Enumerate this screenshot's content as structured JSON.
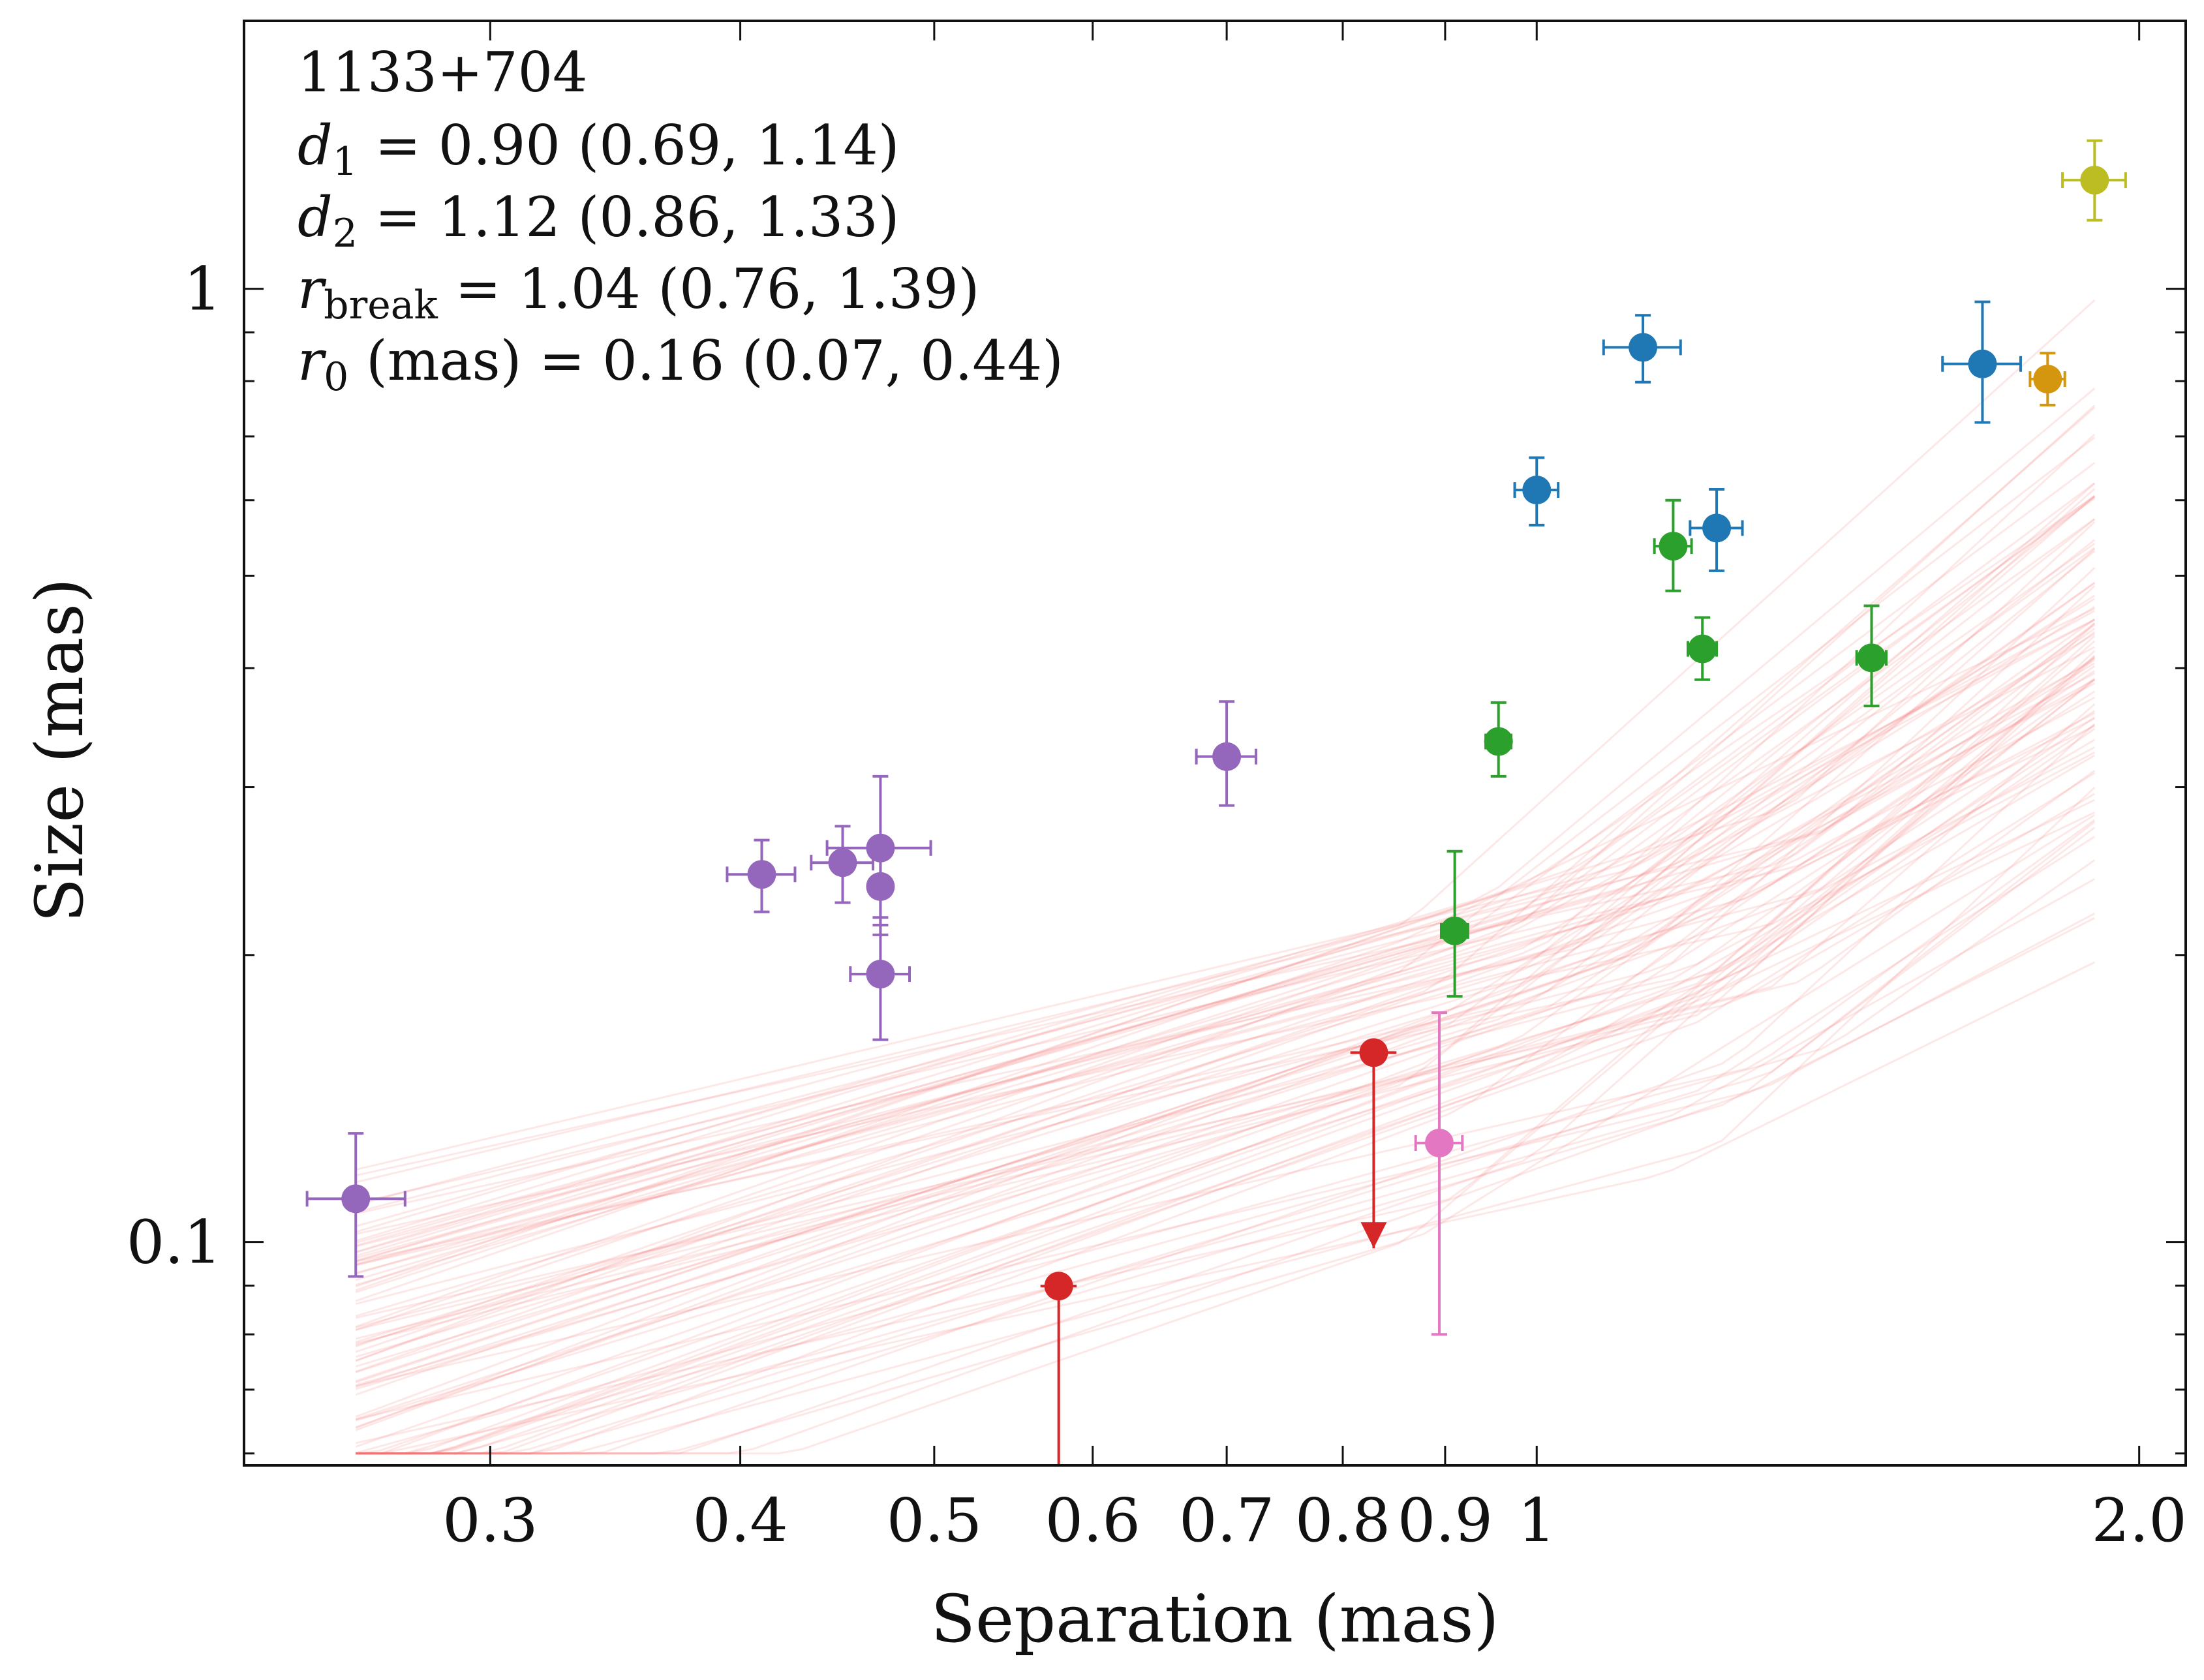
{
  "chart_data": {
    "type": "scatter",
    "xlabel": "Separation (mas)",
    "ylabel": "Size (mas)",
    "xscale": "log",
    "yscale": "log",
    "xlim": [
      0.226,
      2.11
    ],
    "ylim": [
      0.0583,
      1.91
    ],
    "x_tick_labels": [
      {
        "value": 0.3,
        "label": "0.3"
      },
      {
        "value": 0.4,
        "label": "0.4"
      },
      {
        "value": 0.5,
        "label": "0.5"
      },
      {
        "value": 0.6,
        "label": "0.6"
      },
      {
        "value": 0.7,
        "label": "0.7"
      },
      {
        "value": 0.8,
        "label": "0.8"
      },
      {
        "value": 0.9,
        "label": "0.9"
      },
      {
        "value": 1.0,
        "label": "1"
      },
      {
        "value": 2.0,
        "label": "2.0"
      }
    ],
    "y_tick_labels": [
      {
        "value": 1.0,
        "label": "1"
      },
      {
        "value": 0.1,
        "label": "0.1"
      }
    ],
    "annotation": {
      "source": "1133+704",
      "d1": {
        "symbol": "d",
        "sub": "1",
        "rest": " = 0.90 (0.69, 1.14)"
      },
      "d2": {
        "symbol": "d",
        "sub": "2",
        "rest": " = 1.12 (0.86, 1.33)"
      },
      "r_break": {
        "symbol": "r",
        "sub": "break",
        "rest": " = 1.04 (0.76, 1.39)"
      },
      "r0": {
        "symbol": "r",
        "sub": "0",
        "rest": " (mas) = 0.16 (0.07, 0.44)"
      }
    },
    "fit_curves": {
      "description": "posterior broken power-law samples",
      "color": "#f26d6d",
      "x_range": [
        0.257,
        1.9
      ]
    },
    "series": [
      {
        "name": "purple",
        "color": "#9467bd",
        "points": [
          {
            "x": 0.257,
            "y": 0.111,
            "xerr": [
              0.014,
              0.015
            ],
            "yerr": [
              0.019,
              0.019
            ]
          },
          {
            "x": 0.41,
            "y": 0.243,
            "xerr": [
              0.016,
              0.016
            ],
            "yerr": [
              0.021,
              0.021
            ]
          },
          {
            "x": 0.45,
            "y": 0.25,
            "xerr": [
              0.016,
              0.016
            ],
            "yerr": [
              0.023,
              0.023
            ]
          },
          {
            "x": 0.47,
            "y": 0.259,
            "xerr": [
              0.028,
              0.028
            ],
            "yerr": [
              0.049,
              0.049
            ]
          },
          {
            "x": 0.47,
            "y": 0.236,
            "xerr": [
              0.0,
              0.0
            ],
            "yerr": [
              0.021,
              0.021
            ]
          },
          {
            "x": 0.47,
            "y": 0.191,
            "xerr": [
              0.016,
              0.016
            ],
            "yerr": [
              0.028,
              0.028
            ]
          },
          {
            "x": 0.7,
            "y": 0.323,
            "xerr": [
              0.024,
              0.024
            ],
            "yerr": [
              0.036,
              0.046
            ]
          }
        ]
      },
      {
        "name": "red",
        "color": "#d62728",
        "upper_limit": true,
        "points": [
          {
            "x": 0.577,
            "y": 0.0899,
            "xerr": [
              0.012,
              0.012
            ],
            "limit_to": 0.0583
          },
          {
            "x": 0.829,
            "y": 0.158,
            "xerr": [
              0.022,
              0.022
            ],
            "limit_to": 0.0985
          }
        ]
      },
      {
        "name": "pink",
        "color": "#e377c2",
        "points": [
          {
            "x": 0.894,
            "y": 0.127,
            "xerr": [
              0.024,
              0.024
            ],
            "yerr": [
              0.047,
              0.047
            ]
          }
        ]
      },
      {
        "name": "green",
        "color": "#2ca02c",
        "points": [
          {
            "x": 0.91,
            "y": 0.212,
            "xerr": [
              0.014,
              0.014
            ],
            "yerr": [
              0.031,
              0.045
            ]
          },
          {
            "x": 0.957,
            "y": 0.335,
            "xerr": [
              0.014,
              0.014
            ],
            "yerr": [
              0.027,
              0.033
            ]
          },
          {
            "x": 1.17,
            "y": 0.537,
            "xerr": [
              0.025,
              0.025
            ],
            "yerr": [
              0.055,
              0.063
            ]
          },
          {
            "x": 1.21,
            "y": 0.419,
            "xerr": [
              0.02,
              0.02
            ],
            "yerr": [
              0.03,
              0.033
            ]
          },
          {
            "x": 1.47,
            "y": 0.41,
            "xerr": [
              0.025,
              0.025
            ],
            "yerr": [
              0.045,
              0.055
            ]
          }
        ]
      },
      {
        "name": "blue",
        "color": "#1f77b4",
        "points": [
          {
            "x": 1.0,
            "y": 0.615,
            "xerr": [
              0.025,
              0.025
            ],
            "yerr": [
              0.05,
              0.05
            ]
          },
          {
            "x": 1.13,
            "y": 0.868,
            "xerr": [
              0.05,
              0.05
            ],
            "yerr": [
              0.07,
              0.07
            ]
          },
          {
            "x": 1.23,
            "y": 0.561,
            "xerr": [
              0.037,
              0.037
            ],
            "yerr": [
              0.055,
              0.055
            ]
          },
          {
            "x": 1.67,
            "y": 0.834,
            "xerr": [
              0.075,
              0.075
            ],
            "yerr": [
              0.11,
              0.135
            ]
          }
        ]
      },
      {
        "name": "orange",
        "color": "#d4950f",
        "points": [
          {
            "x": 1.8,
            "y": 0.804,
            "xerr": [
              0.036,
              0.036
            ],
            "yerr": [
              0.049,
              0.052
            ]
          }
        ]
      },
      {
        "name": "olive",
        "color": "#bcbd22",
        "points": [
          {
            "x": 1.9,
            "y": 1.3,
            "xerr": [
              0.069,
              0.069
            ],
            "yerr": [
              0.12,
              0.13
            ]
          }
        ]
      }
    ]
  }
}
